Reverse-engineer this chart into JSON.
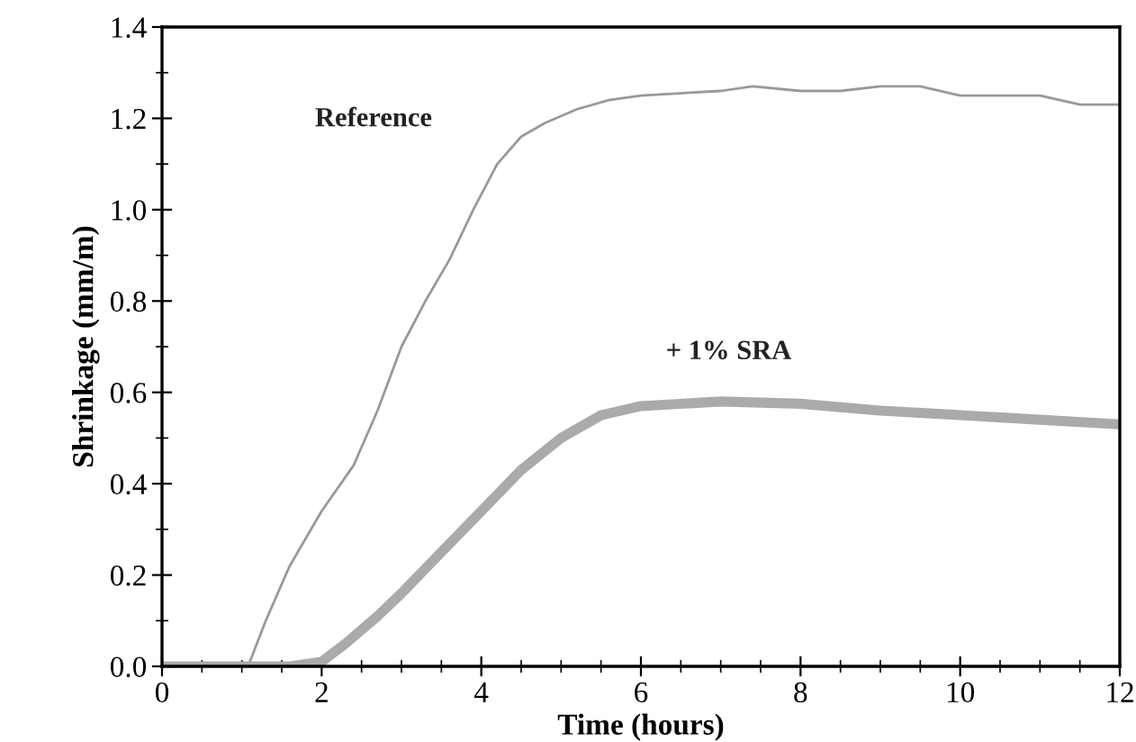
{
  "chart_data": {
    "type": "line",
    "xlabel": "Time (hours)",
    "ylabel": "Shrinkage (mm/m)",
    "xlim": [
      0,
      12
    ],
    "xticks": [
      0,
      2,
      4,
      6,
      8,
      10,
      12
    ],
    "ylim": [
      0,
      1.4
    ],
    "yticks": [
      {
        "value": 0,
        "label": "0.0"
      },
      0.2,
      0.4,
      0.6,
      0.8,
      {
        "value": 1,
        "label": "1.0"
      },
      1.2,
      1.4
    ],
    "grid": false,
    "legend": false,
    "marker": "none",
    "line_style": "solid",
    "series": [
      {
        "name": "Reference",
        "color": "#999999",
        "x": [
          0,
          1,
          1.1,
          1.3,
          1.6,
          2,
          2.4,
          2.7,
          3,
          3.3,
          3.6,
          3.9,
          4.2,
          4.5,
          4.8,
          5.2,
          5.6,
          6,
          7,
          7.4,
          8,
          8.5,
          9,
          9.5,
          10,
          11,
          11.5,
          12
        ],
        "values": [
          0,
          0,
          0.01,
          0.1,
          0.22,
          0.34,
          0.44,
          0.56,
          0.7,
          0.8,
          0.89,
          1.0,
          1.1,
          1.16,
          1.19,
          1.22,
          1.24,
          1.25,
          1.26,
          1.27,
          1.26,
          1.26,
          1.27,
          1.27,
          1.25,
          1.25,
          1.23,
          1.23
        ]
      },
      {
        "name": "+ 1% SRA",
        "color": "#aaaaaa",
        "x": [
          0,
          1.6,
          2,
          2.3,
          2.7,
          3,
          3.5,
          4,
          4.5,
          5,
          5.5,
          6,
          7,
          8,
          9,
          10,
          11,
          12
        ],
        "values": [
          0,
          0,
          0.01,
          0.05,
          0.11,
          0.16,
          0.25,
          0.34,
          0.43,
          0.5,
          0.55,
          0.57,
          0.58,
          0.575,
          0.56,
          0.55,
          0.54,
          0.53
        ]
      }
    ]
  }
}
